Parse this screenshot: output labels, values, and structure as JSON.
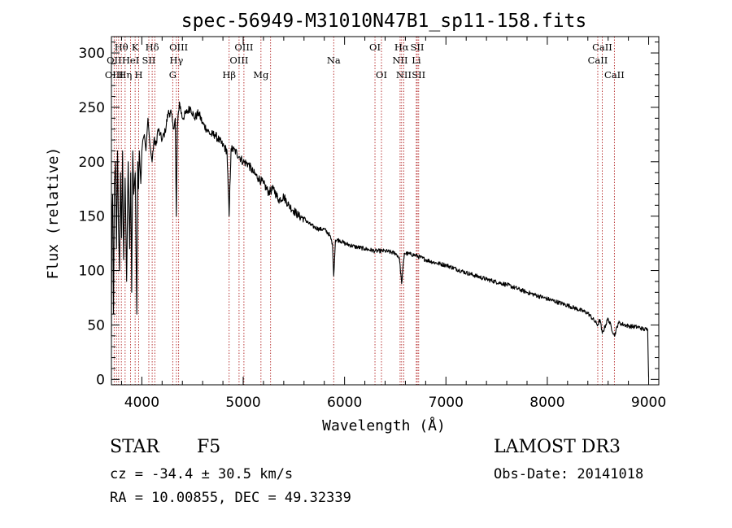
{
  "chart_data": {
    "type": "line",
    "title": "spec-56949-M31010N47B1_sp11-158.fits",
    "xlabel": "Wavelength (Å)",
    "ylabel": "Flux (relative)",
    "xlim": [
      3700,
      9100
    ],
    "ylim": [
      -5,
      315
    ],
    "x_ticks": [
      4000,
      5000,
      6000,
      7000,
      8000,
      9000
    ],
    "x_tick_labels": [
      "4000",
      "5000",
      "6000",
      "7000",
      "8000",
      "9000"
    ],
    "y_ticks": [
      0,
      50,
      100,
      150,
      200,
      250,
      300
    ],
    "y_tick_labels": [
      "0",
      "50",
      "100",
      "150",
      "200",
      "250",
      "300"
    ],
    "series": [
      {
        "name": "spectrum",
        "x": [
          3700,
          3705,
          3712,
          3720,
          3730,
          3740,
          3750,
          3760,
          3770,
          3780,
          3790,
          3800,
          3810,
          3820,
          3835,
          3850,
          3865,
          3880,
          3890,
          3900,
          3910,
          3920,
          3935,
          3950,
          3960,
          3968,
          3975,
          3990,
          4000,
          4010,
          4025,
          4040,
          4060,
          4080,
          4101,
          4120,
          4140,
          4160,
          4180,
          4200,
          4230,
          4260,
          4290,
          4310,
          4330,
          4340,
          4350,
          4370,
          4400,
          4440,
          4480,
          4520,
          4560,
          4600,
          4640,
          4680,
          4720,
          4760,
          4800,
          4840,
          4861,
          4880,
          4920,
          4960,
          5000,
          5050,
          5100,
          5150,
          5200,
          5250,
          5300,
          5350,
          5400,
          5450,
          5500,
          5550,
          5600,
          5650,
          5700,
          5750,
          5800,
          5850,
          5880,
          5893,
          5910,
          5950,
          6000,
          6100,
          6200,
          6300,
          6400,
          6500,
          6540,
          6563,
          6590,
          6650,
          6700,
          6800,
          6900,
          7000,
          7200,
          7400,
          7600,
          7800,
          8000,
          8200,
          8400,
          8498,
          8520,
          8542,
          8600,
          8662,
          8700,
          8800,
          8900,
          8950,
          8990,
          9000
        ],
        "values": [
          40,
          150,
          170,
          60,
          180,
          200,
          120,
          210,
          140,
          100,
          190,
          130,
          210,
          110,
          185,
          90,
          200,
          120,
          190,
          80,
          210,
          170,
          190,
          60,
          200,
          175,
          210,
          180,
          210,
          220,
          225,
          210,
          240,
          215,
          200,
          220,
          215,
          230,
          225,
          220,
          228,
          245,
          245,
          230,
          240,
          150,
          230,
          255,
          240,
          245,
          250,
          240,
          245,
          235,
          230,
          225,
          225,
          220,
          215,
          210,
          150,
          212,
          210,
          205,
          200,
          198,
          190,
          185,
          180,
          172,
          175,
          165,
          168,
          160,
          155,
          150,
          148,
          143,
          140,
          138,
          138,
          133,
          125,
          95,
          128,
          128,
          125,
          122,
          120,
          118,
          118,
          116,
          112,
          88,
          116,
          115,
          114,
          110,
          107,
          105,
          98,
          92,
          87,
          80,
          74,
          68,
          61,
          50,
          55,
          42,
          56,
          40,
          52,
          49,
          48,
          46,
          46,
          2
        ]
      }
    ],
    "line_annotations": [
      {
        "label": "Hθ",
        "x": 3798,
        "row": 1
      },
      {
        "label": "OII",
        "x": 3727,
        "row": 2
      },
      {
        "label": "OIII",
        "x": 3727,
        "row": 3
      },
      {
        "label": "K",
        "x": 3934,
        "row": 1
      },
      {
        "label": "HeI",
        "x": 3889,
        "row": 2
      },
      {
        "label": "Hη",
        "x": 3835,
        "row": 3
      },
      {
        "label": "SII",
        "x": 4069,
        "row": 2
      },
      {
        "label": "H",
        "x": 3969,
        "row": 3
      },
      {
        "label": "Hδ",
        "x": 4102,
        "row": 1
      },
      {
        "label": "OIII",
        "x": 4363,
        "row": 1
      },
      {
        "label": "Hγ",
        "x": 4341,
        "row": 2
      },
      {
        "label": "G",
        "x": 4305,
        "row": 3
      },
      {
        "label": "Hβ",
        "x": 4861,
        "row": 3
      },
      {
        "label": "OIII",
        "x": 5007,
        "row": 1
      },
      {
        "label": "OIII",
        "x": 4959,
        "row": 2
      },
      {
        "label": "Mg",
        "x": 5175,
        "row": 3
      },
      {
        "label": "Na",
        "x": 5893,
        "row": 2
      },
      {
        "label": "OI",
        "x": 6300,
        "row": 1
      },
      {
        "label": "OI",
        "x": 6364,
        "row": 3
      },
      {
        "label": "Hα",
        "x": 6563,
        "row": 1
      },
      {
        "label": "NII",
        "x": 6548,
        "row": 2
      },
      {
        "label": "NII",
        "x": 6584,
        "row": 3
      },
      {
        "label": "SII",
        "x": 6717,
        "row": 1
      },
      {
        "label": "Li",
        "x": 6708,
        "row": 2
      },
      {
        "label": "SII",
        "x": 6731,
        "row": 3
      },
      {
        "label": "CaII",
        "x": 8542,
        "row": 1
      },
      {
        "label": "CaII",
        "x": 8498,
        "row": 2
      },
      {
        "label": "CaII",
        "x": 8662,
        "row": 3
      }
    ],
    "extra_line_markers": [
      3750,
      3771,
      4128,
      5270
    ]
  },
  "info": {
    "class_label": "STAR",
    "subclass": "F5",
    "survey": "LAMOST DR3",
    "redshift_text": "cz = -34.4 ± 30.5 km/s",
    "obs_date_text": "Obs-Date: 20141018",
    "coords_text": "RA =  10.00855, DEC =  49.32339"
  }
}
